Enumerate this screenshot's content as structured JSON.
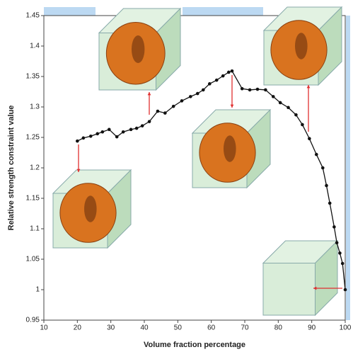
{
  "chart_data": {
    "type": "line",
    "x_label": "Volume fraction percentage",
    "y_label": "Relative strength constraint value",
    "x": [
      20,
      21.8,
      24,
      26,
      27.5,
      29.5,
      31.8,
      33.7,
      36,
      37.7,
      39.4,
      41.5,
      44,
      46.2,
      48.7,
      51.2,
      53.8,
      55.9,
      57.6,
      59.5,
      61.6,
      63.5,
      65.2,
      66.2,
      69.2,
      71.5,
      73.8,
      76.2,
      78.5,
      80.6,
      83,
      85.3,
      87.2,
      89.3,
      91.4,
      93.3,
      94.4,
      95.4,
      96.7,
      97.5,
      98.4,
      99.2,
      100
    ],
    "values": [
      1.244,
      1.249,
      1.252,
      1.256,
      1.259,
      1.263,
      1.251,
      1.259,
      1.263,
      1.265,
      1.269,
      1.276,
      1.293,
      1.29,
      1.301,
      1.31,
      1.317,
      1.322,
      1.328,
      1.338,
      1.344,
      1.351,
      1.357,
      1.359,
      1.33,
      1.328,
      1.329,
      1.328,
      1.317,
      1.307,
      1.299,
      1.287,
      1.271,
      1.248,
      1.222,
      1.2,
      1.171,
      1.142,
      1.103,
      1.077,
      1.06,
      1.043,
      1.0
    ],
    "color": "#111111",
    "xlim": [
      10,
      100
    ],
    "xticks": [
      10,
      20,
      30,
      40,
      50,
      60,
      70,
      80,
      90,
      100
    ],
    "ylim": [
      0.95,
      1.45
    ],
    "yticks": [
      0.95,
      1,
      1.05,
      1.1,
      1.15,
      1.2,
      1.25,
      1.3,
      1.35,
      1.4,
      1.45
    ],
    "grid": false
  }
}
